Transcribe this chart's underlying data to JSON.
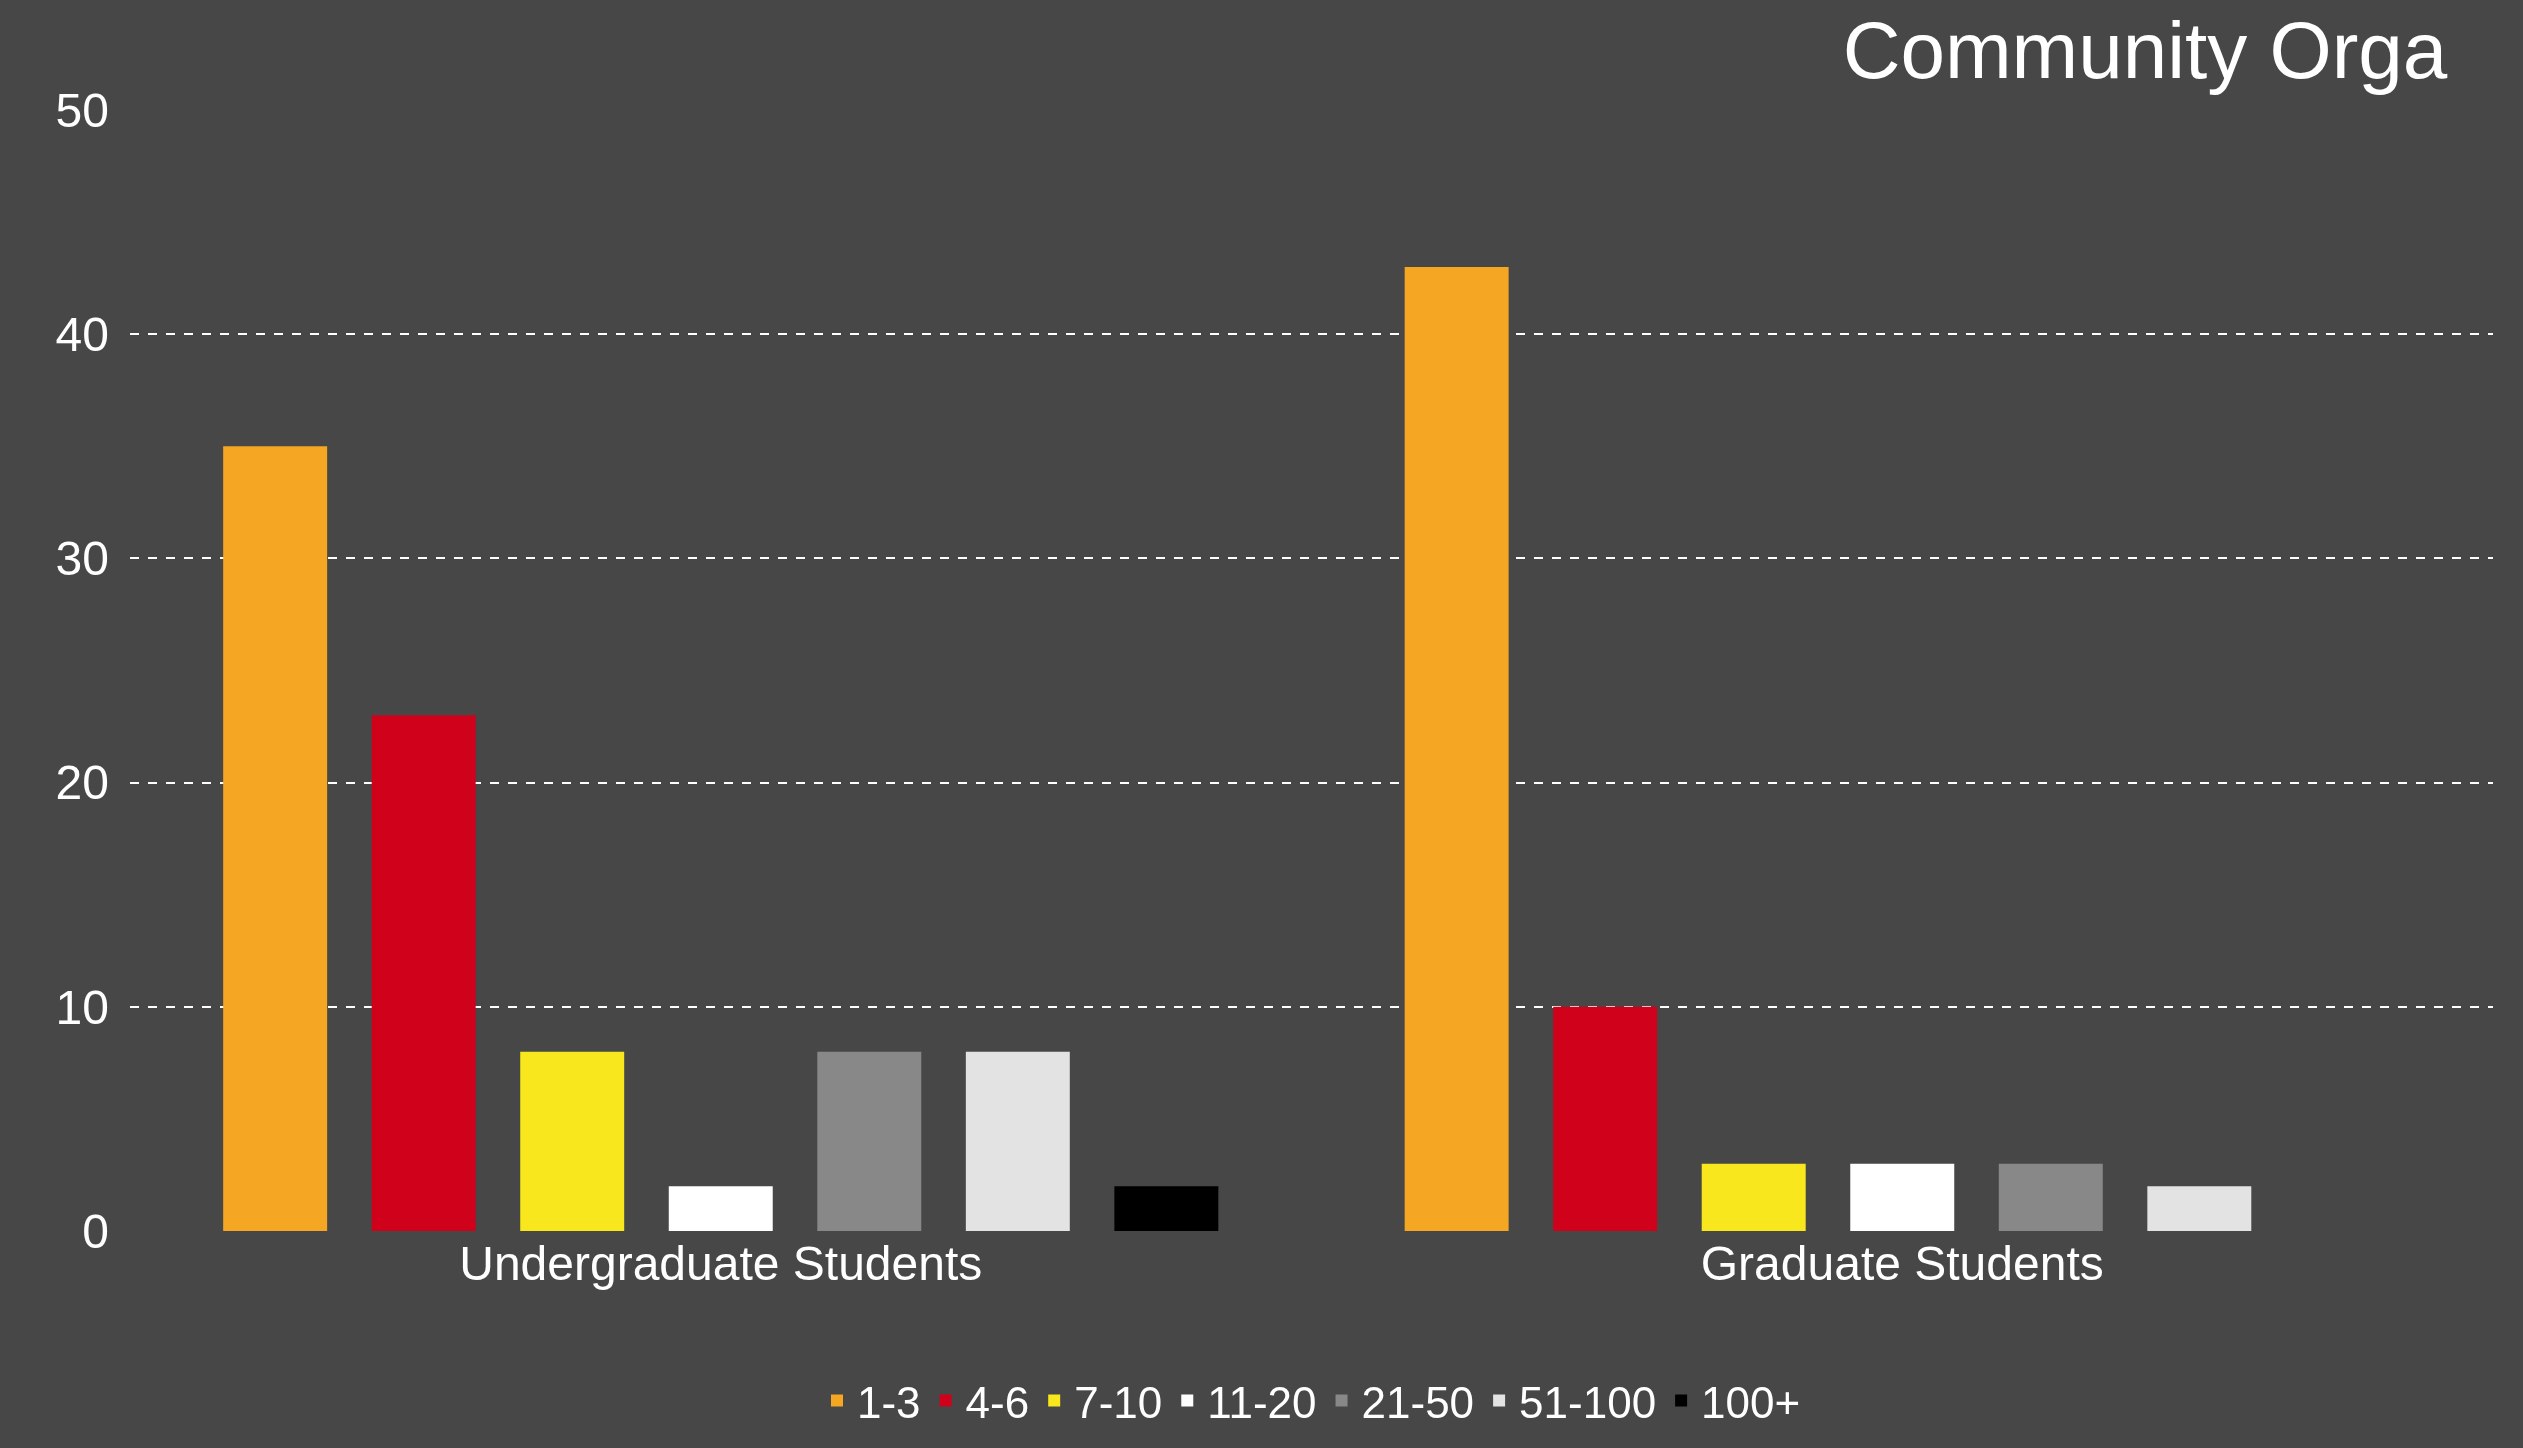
{
  "chart_data": {
    "type": "bar",
    "title": "Community Orga",
    "categories": [
      "Undergraduate Students",
      "Graduate Students"
    ],
    "series": [
      {
        "name": "1-3",
        "color": "#f5a623",
        "values": [
          35,
          43
        ]
      },
      {
        "name": "4-6",
        "color": "#d0021b",
        "values": [
          23,
          10
        ]
      },
      {
        "name": "7-10",
        "color": "#f8e71c",
        "values": [
          8,
          3
        ]
      },
      {
        "name": "11-20",
        "color": "#ffffff",
        "values": [
          2,
          3
        ]
      },
      {
        "name": "21-50",
        "color": "#888888",
        "values": [
          8,
          3
        ]
      },
      {
        "name": "51-100",
        "color": "#e3e3e3",
        "values": [
          8,
          2
        ]
      },
      {
        "name": "100+",
        "color": "#000000",
        "values": [
          2,
          0
        ]
      }
    ],
    "ylim": [
      0,
      50
    ],
    "yticks": [
      0,
      10,
      20,
      30,
      40,
      50
    ],
    "grid": "y",
    "legend": "bottom"
  }
}
